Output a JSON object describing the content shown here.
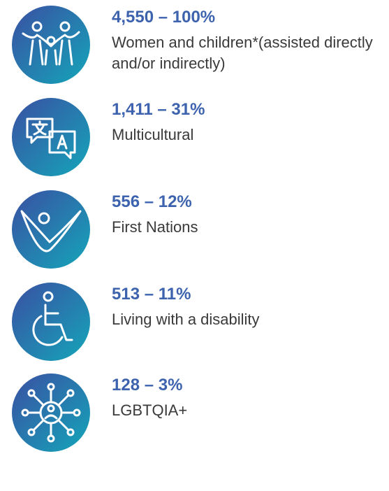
{
  "items": [
    {
      "heading": "4,550 – 100%",
      "label": "Women and children*(assisted directly and/or indirectly)"
    },
    {
      "heading": "1,411 – 31%",
      "label": "Multicultural"
    },
    {
      "heading": "556 – 12%",
      "label": "First Nations"
    },
    {
      "heading": "513 – 11%",
      "label": "Living with a disability"
    },
    {
      "heading": "128 – 3%",
      "label": "LGBTQIA+"
    }
  ]
}
